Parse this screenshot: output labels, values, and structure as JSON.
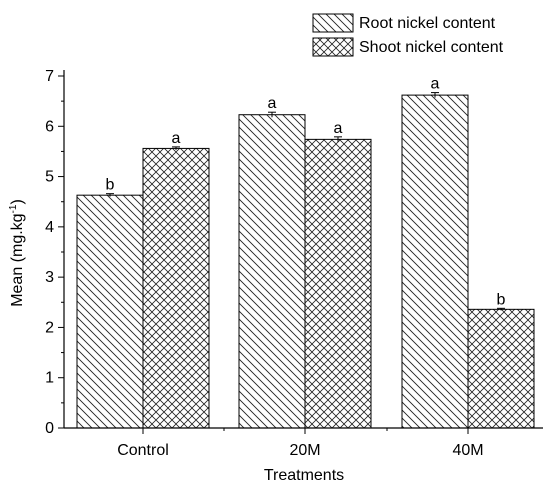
{
  "chart_data": {
    "type": "bar",
    "title": "",
    "xlabel": "Treatments",
    "ylabel": "Mean (mg.kg",
    "ylabel_sup": "-1",
    "ylabel_close": ")",
    "categories": [
      "Control",
      "20M",
      "40M"
    ],
    "series": [
      {
        "name": "Root nickel content",
        "values": [
          4.63,
          6.23,
          6.62
        ],
        "errors": [
          0.03,
          0.05,
          0.05
        ],
        "letters": [
          "b",
          "a",
          "a"
        ],
        "pattern": "diagonal"
      },
      {
        "name": "Shoot nickel content",
        "values": [
          5.56,
          5.74,
          2.36
        ],
        "errors": [
          0.03,
          0.05,
          0.02
        ],
        "letters": [
          "a",
          "a",
          "b"
        ],
        "pattern": "crosshatch"
      }
    ],
    "ylim": [
      0,
      7
    ],
    "yticks": [
      0,
      1,
      2,
      3,
      4,
      5,
      6,
      7
    ],
    "grid": false,
    "legend_position": "top-right"
  }
}
